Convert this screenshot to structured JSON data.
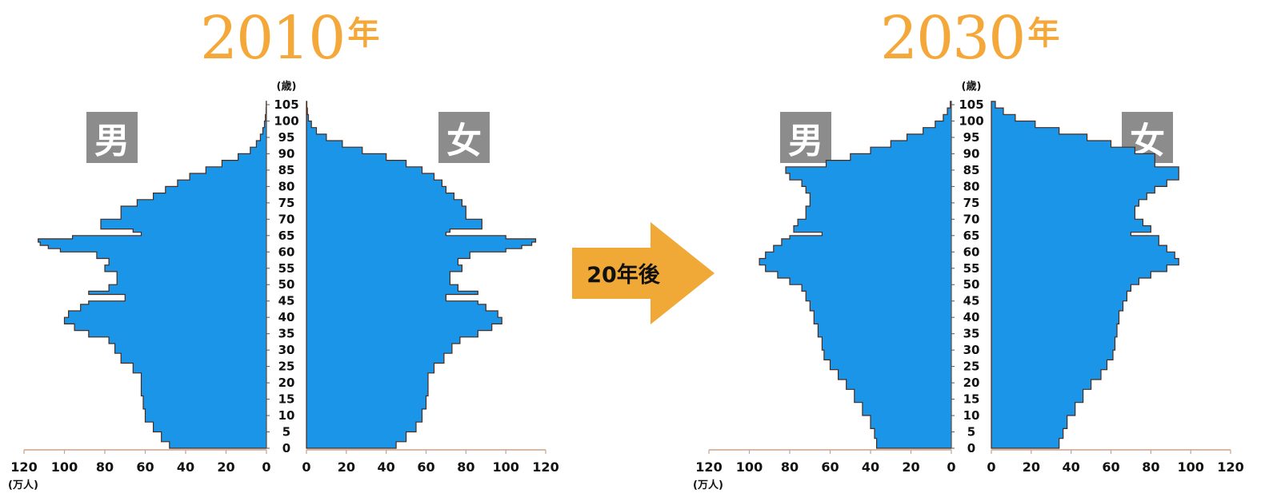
{
  "pyramids": [
    {
      "year_number": "2010",
      "year_suffix": "年",
      "left_label": "男",
      "right_label": "女"
    },
    {
      "year_number": "2030",
      "year_suffix": "年",
      "left_label": "男",
      "right_label": "女"
    }
  ],
  "arrow_label": "20年後",
  "age_unit": "(歳)",
  "population_unit": "(万人)",
  "colors": {
    "fill": "#1B95E8",
    "outline": "#4A2A1A",
    "title": "#F5A83A",
    "badge": "#8C8C8C",
    "arrow": "#F0A836",
    "axis": "#C9A28A"
  },
  "chart_data": [
    {
      "type": "bar",
      "orientation": "horizontal-population-pyramid",
      "title": "2010年",
      "age_axis": {
        "label": "(歳)",
        "ticks": [
          0,
          5,
          10,
          15,
          20,
          25,
          30,
          35,
          40,
          45,
          50,
          55,
          60,
          65,
          70,
          75,
          80,
          85,
          90,
          95,
          100,
          105
        ],
        "range": [
          0,
          105
        ]
      },
      "value_axis": {
        "label": "(万人)",
        "ticks": [
          120,
          100,
          80,
          60,
          40,
          20,
          0
        ],
        "range": [
          0,
          120
        ]
      },
      "series": [
        {
          "name": "男",
          "side": "left",
          "ages": [
            0,
            2,
            5,
            8,
            12,
            16,
            20,
            23,
            26,
            29,
            32,
            34,
            36,
            38,
            40,
            42,
            44,
            45,
            46,
            47,
            48,
            50,
            52,
            54,
            56,
            58,
            60,
            61,
            62,
            63,
            64,
            65,
            66,
            67,
            68,
            70,
            72,
            74,
            76,
            78,
            80,
            82,
            84,
            86,
            88,
            90,
            92,
            94,
            96,
            98,
            100,
            102,
            104,
            106
          ],
          "values": [
            48,
            52,
            56,
            60,
            61,
            62,
            62,
            66,
            72,
            75,
            78,
            88,
            95,
            100,
            98,
            92,
            88,
            70,
            70,
            88,
            78,
            74,
            74,
            80,
            78,
            84,
            102,
            108,
            112,
            113,
            96,
            62,
            66,
            82,
            82,
            72,
            72,
            64,
            56,
            50,
            44,
            38,
            30,
            22,
            14,
            8,
            5,
            3,
            1.8,
            1,
            0.5,
            0.2,
            0.1,
            0
          ]
        },
        {
          "name": "女",
          "side": "right",
          "ages": [
            0,
            2,
            5,
            8,
            12,
            16,
            20,
            23,
            26,
            29,
            32,
            34,
            36,
            38,
            40,
            42,
            44,
            45,
            46,
            47,
            48,
            50,
            52,
            54,
            56,
            58,
            60,
            61,
            62,
            63,
            64,
            65,
            66,
            67,
            68,
            70,
            72,
            74,
            76,
            78,
            80,
            82,
            84,
            86,
            88,
            90,
            92,
            94,
            96,
            98,
            100,
            102,
            104,
            106
          ],
          "values": [
            45,
            50,
            55,
            58,
            60,
            61,
            61,
            64,
            69,
            73,
            77,
            86,
            93,
            98,
            96,
            90,
            86,
            70,
            70,
            86,
            76,
            72,
            72,
            78,
            76,
            82,
            100,
            108,
            113,
            115,
            100,
            70,
            72,
            88,
            88,
            80,
            80,
            78,
            74,
            70,
            68,
            64,
            58,
            50,
            40,
            28,
            18,
            10,
            5,
            2.5,
            1,
            0.5,
            0.2,
            0
          ]
        }
      ]
    },
    {
      "type": "bar",
      "orientation": "horizontal-population-pyramid",
      "title": "2030年",
      "age_axis": {
        "label": "(歳)",
        "ticks": [
          0,
          5,
          10,
          15,
          20,
          25,
          30,
          35,
          40,
          45,
          50,
          55,
          60,
          65,
          70,
          75,
          80,
          85,
          90,
          95,
          100,
          105
        ],
        "range": [
          0,
          105
        ]
      },
      "value_axis": {
        "label": "(万人)",
        "ticks": [
          120,
          100,
          80,
          60,
          40,
          20,
          0
        ],
        "range": [
          0,
          120
        ]
      },
      "series": [
        {
          "name": "男",
          "side": "left",
          "ages": [
            0,
            3,
            6,
            10,
            14,
            18,
            21,
            24,
            27,
            30,
            34,
            38,
            42,
            45,
            48,
            50,
            52,
            54,
            56,
            58,
            60,
            62,
            64,
            65,
            66,
            68,
            70,
            72,
            74,
            76,
            78,
            80,
            82,
            84,
            86,
            88,
            90,
            92,
            94,
            96,
            98,
            100,
            102,
            104,
            106
          ],
          "values": [
            37,
            38,
            40,
            44,
            48,
            52,
            56,
            60,
            63,
            64,
            66,
            68,
            70,
            72,
            74,
            80,
            86,
            92,
            95,
            92,
            88,
            84,
            80,
            64,
            78,
            76,
            72,
            72,
            70,
            70,
            72,
            74,
            80,
            82,
            62,
            50,
            40,
            30,
            22,
            14,
            8,
            4,
            2,
            0.5,
            0
          ]
        },
        {
          "name": "女",
          "side": "right",
          "ages": [
            0,
            3,
            6,
            10,
            14,
            18,
            21,
            24,
            27,
            30,
            34,
            38,
            42,
            45,
            48,
            50,
            52,
            54,
            56,
            58,
            60,
            62,
            64,
            65,
            66,
            68,
            70,
            72,
            74,
            76,
            78,
            80,
            82,
            84,
            86,
            88,
            90,
            92,
            94,
            96,
            98,
            100,
            102,
            104,
            106
          ],
          "values": [
            34,
            36,
            38,
            42,
            46,
            50,
            55,
            58,
            61,
            62,
            63,
            64,
            66,
            68,
            70,
            74,
            80,
            88,
            94,
            92,
            88,
            84,
            84,
            70,
            80,
            76,
            72,
            72,
            74,
            78,
            82,
            88,
            94,
            94,
            82,
            82,
            72,
            60,
            48,
            34,
            22,
            12,
            6,
            2,
            0
          ]
        }
      ]
    }
  ]
}
